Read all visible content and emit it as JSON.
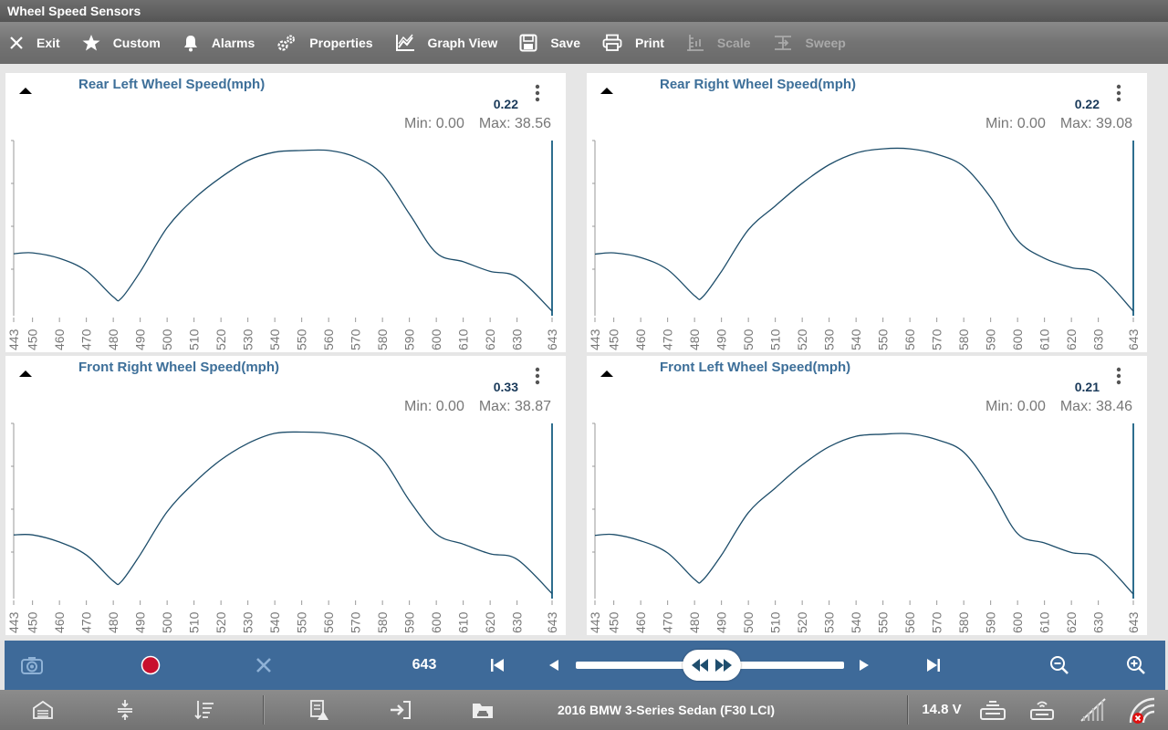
{
  "window": {
    "title": "Wheel Speed Sensors"
  },
  "toolbar": {
    "items": [
      {
        "label": "Exit",
        "icon": "close-icon",
        "enabled": true
      },
      {
        "label": "Custom",
        "icon": "star-icon",
        "enabled": true
      },
      {
        "label": "Alarms",
        "icon": "bell-icon",
        "enabled": true
      },
      {
        "label": "Properties",
        "icon": "gears-icon",
        "enabled": true
      },
      {
        "label": "Graph View",
        "icon": "line-graph-icon",
        "enabled": true
      },
      {
        "label": "Save",
        "icon": "save-icon",
        "enabled": true
      },
      {
        "label": "Print",
        "icon": "printer-icon",
        "enabled": true
      },
      {
        "label": "Scale",
        "icon": "scale-icon",
        "enabled": false
      },
      {
        "label": "Sweep",
        "icon": "sweep-icon",
        "enabled": false
      }
    ]
  },
  "x_ticks": [
    "443",
    "450",
    "460",
    "470",
    "480",
    "490",
    "500",
    "510",
    "520",
    "530",
    "540",
    "550",
    "560",
    "570",
    "580",
    "590",
    "600",
    "610",
    "620",
    "630",
    "643"
  ],
  "panels": [
    {
      "title": "Rear Left Wheel Speed(mph)",
      "value": "0.22",
      "min": "Min: 0.00",
      "max": "Max: 38.56"
    },
    {
      "title": "Rear Right Wheel Speed(mph)",
      "value": "0.22",
      "min": "Min: 0.00",
      "max": "Max: 39.08"
    },
    {
      "title": "Front Right Wheel Speed(mph)",
      "value": "0.33",
      "min": "Min: 0.00",
      "max": "Max: 38.87"
    },
    {
      "title": "Front Left Wheel Speed(mph)",
      "value": "0.21",
      "min": "Min: 0.00",
      "max": "Max: 38.46"
    }
  ],
  "chart_data": [
    {
      "type": "line",
      "x": [
        443,
        450,
        460,
        470,
        480,
        483,
        490,
        500,
        510,
        520,
        530,
        540,
        550,
        560,
        570,
        580,
        590,
        600,
        610,
        620,
        630,
        643
      ],
      "series": [
        {
          "values": [
            13.9,
            14.1,
            12.8,
            9.8,
            3.6,
            3.3,
            9.6,
            20.1,
            27.0,
            32.1,
            36.1,
            38.1,
            38.5,
            38.5,
            36.9,
            32.8,
            23.4,
            14.1,
            12.0,
            9.7,
            8.3,
            0.22
          ]
        }
      ]
    },
    {
      "type": "line",
      "x": [
        443,
        450,
        460,
        470,
        480,
        483,
        490,
        500,
        510,
        520,
        530,
        540,
        550,
        560,
        570,
        580,
        590,
        600,
        610,
        620,
        630,
        643
      ],
      "series": [
        {
          "values": [
            13.8,
            14.1,
            13.0,
            10.1,
            3.9,
            3.6,
            9.7,
            19.6,
            25.3,
            30.7,
            35.1,
            37.9,
            38.9,
            38.9,
            37.6,
            34.7,
            27.3,
            17.1,
            12.8,
            10.6,
            9.1,
            0.22
          ]
        }
      ]
    },
    {
      "type": "line",
      "x": [
        443,
        450,
        460,
        470,
        480,
        483,
        490,
        500,
        510,
        520,
        530,
        540,
        550,
        560,
        570,
        580,
        590,
        600,
        610,
        620,
        630,
        643
      ],
      "series": [
        {
          "values": [
            14.3,
            14.3,
            12.6,
            9.5,
            3.3,
            3.2,
            9.6,
            19.8,
            26.7,
            32.2,
            36.1,
            38.5,
            38.8,
            38.5,
            36.9,
            32.4,
            22.5,
            14.5,
            12.1,
            9.8,
            8.5,
            0.33
          ]
        }
      ]
    },
    {
      "type": "line",
      "x": [
        443,
        450,
        460,
        470,
        480,
        483,
        490,
        500,
        510,
        520,
        530,
        540,
        550,
        560,
        570,
        580,
        590,
        600,
        610,
        620,
        630,
        643
      ],
      "series": [
        {
          "values": [
            14.2,
            14.4,
            12.9,
            10.0,
            3.7,
            3.5,
            9.5,
            19.6,
            25.5,
            31.0,
            35.3,
            37.8,
            38.3,
            38.4,
            37.0,
            34.0,
            25.3,
            14.6,
            12.4,
            10.1,
            8.8,
            0.21
          ]
        }
      ]
    }
  ],
  "playback": {
    "frame": "643"
  },
  "status": {
    "vehicle": "2016 BMW 3-Series Sedan (F30 LCI)",
    "voltage": "14.8 V"
  },
  "colors": {
    "line": "#1d4d6a",
    "accent_bar": "#3e6a99",
    "title_text": "#3d6f99"
  }
}
